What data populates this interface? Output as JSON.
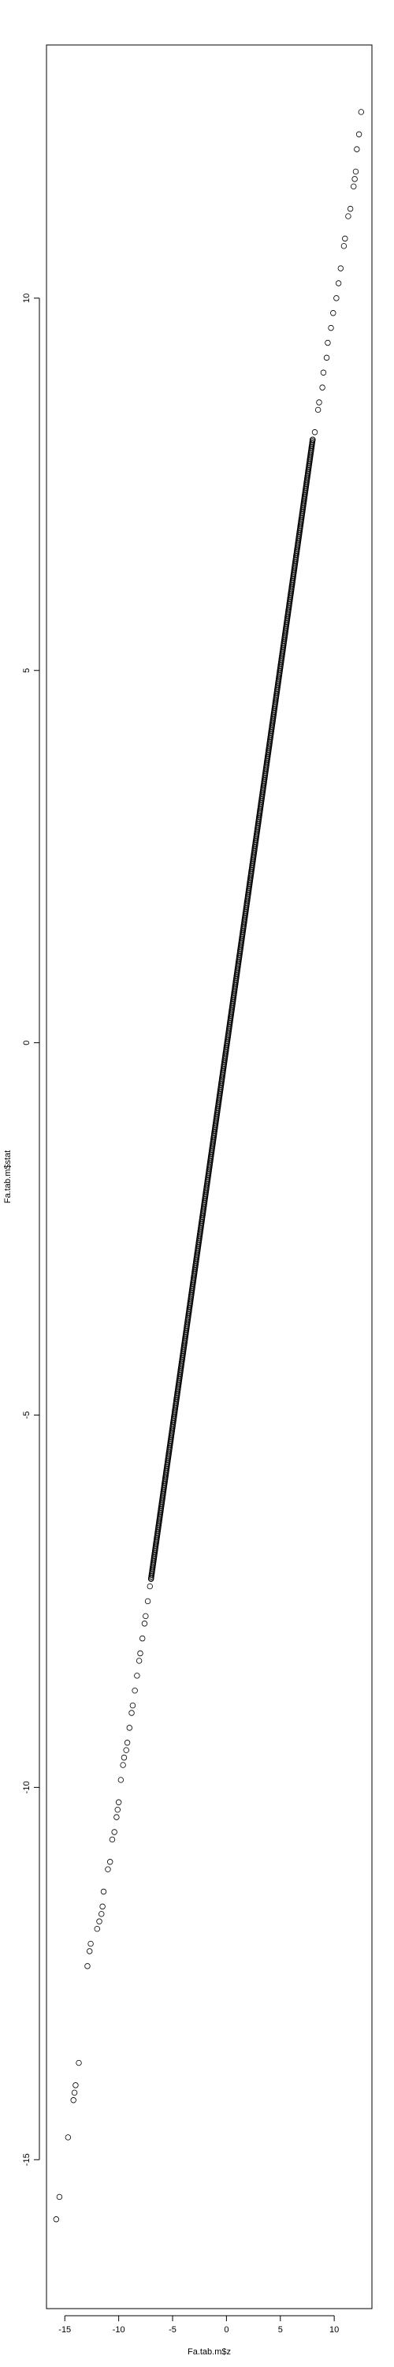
{
  "chart_data": {
    "type": "scatter",
    "title": "",
    "xlabel": "Fa.tab.m$z",
    "ylabel": "Fa.tab.m$stat",
    "xlim": [
      -16.7,
      13.5
    ],
    "ylim": [
      -17.0,
      13.4
    ],
    "x_ticks": [
      -15,
      -10,
      -5,
      0,
      5,
      10
    ],
    "x_tick_labels": [
      "-15",
      "-10",
      "-5",
      "0",
      "5",
      "10"
    ],
    "y_ticks": [
      -15,
      -10,
      -5,
      0,
      5,
      10
    ],
    "y_tick_labels": [
      "-15",
      "-10",
      "-5",
      "0",
      "5",
      "10"
    ],
    "grid": false,
    "marker": "open-circle",
    "color": "#000000",
    "points": [
      [
        -15.8,
        -15.8
      ],
      [
        -15.5,
        -15.5
      ],
      [
        -14.7,
        -14.7
      ],
      [
        -14.2,
        -14.2
      ],
      [
        -14.1,
        -14.1
      ],
      [
        -14.0,
        -14.0
      ],
      [
        -13.7,
        -13.7
      ],
      [
        -12.9,
        -12.4
      ],
      [
        -12.7,
        -12.2
      ],
      [
        -12.6,
        -12.1
      ],
      [
        -12.0,
        -11.9
      ],
      [
        -11.8,
        -11.8
      ],
      [
        -11.6,
        -11.7
      ],
      [
        -11.5,
        -11.6
      ],
      [
        -11.4,
        -11.4
      ],
      [
        -11.0,
        -11.1
      ],
      [
        -10.8,
        -11.0
      ],
      [
        -10.6,
        -10.7
      ],
      [
        -10.4,
        -10.6
      ],
      [
        -10.2,
        -10.4
      ],
      [
        -10.1,
        -10.3
      ],
      [
        -10.0,
        -10.2
      ],
      [
        -9.8,
        -9.9
      ],
      [
        -9.6,
        -9.7
      ],
      [
        -9.5,
        -9.6
      ],
      [
        -9.3,
        -9.5
      ],
      [
        -9.2,
        -9.4
      ],
      [
        -9.0,
        -9.2
      ],
      [
        -8.8,
        -9.0
      ],
      [
        -8.7,
        -8.9
      ],
      [
        -8.5,
        -8.7
      ],
      [
        -8.3,
        -8.5
      ],
      [
        -8.1,
        -8.3
      ],
      [
        -8.0,
        -8.2
      ],
      [
        -7.8,
        -8.0
      ],
      [
        -7.6,
        -7.8
      ],
      [
        -7.5,
        -7.7
      ],
      [
        -7.3,
        -7.5
      ],
      [
        -7.1,
        -7.3
      ],
      [
        -7.0,
        -7.2
      ],
      [
        8.0,
        8.1
      ],
      [
        8.2,
        8.2
      ],
      [
        8.5,
        8.5
      ],
      [
        8.6,
        8.6
      ],
      [
        8.9,
        8.8
      ],
      [
        9.0,
        9.0
      ],
      [
        9.3,
        9.2
      ],
      [
        9.4,
        9.4
      ],
      [
        9.7,
        9.6
      ],
      [
        9.9,
        9.8
      ],
      [
        10.2,
        10.0
      ],
      [
        10.4,
        10.2
      ],
      [
        10.6,
        10.4
      ],
      [
        10.9,
        10.7
      ],
      [
        11.0,
        10.8
      ],
      [
        11.3,
        11.1
      ],
      [
        11.5,
        11.2
      ],
      [
        11.8,
        11.5
      ],
      [
        11.9,
        11.6
      ],
      [
        12.0,
        11.7
      ],
      [
        12.1,
        12.0
      ],
      [
        12.3,
        12.2
      ],
      [
        12.5,
        12.5
      ]
    ],
    "dense_band": {
      "x": [
        -7.0,
        8.0
      ],
      "y": [
        -7.2,
        8.1
      ]
    }
  }
}
